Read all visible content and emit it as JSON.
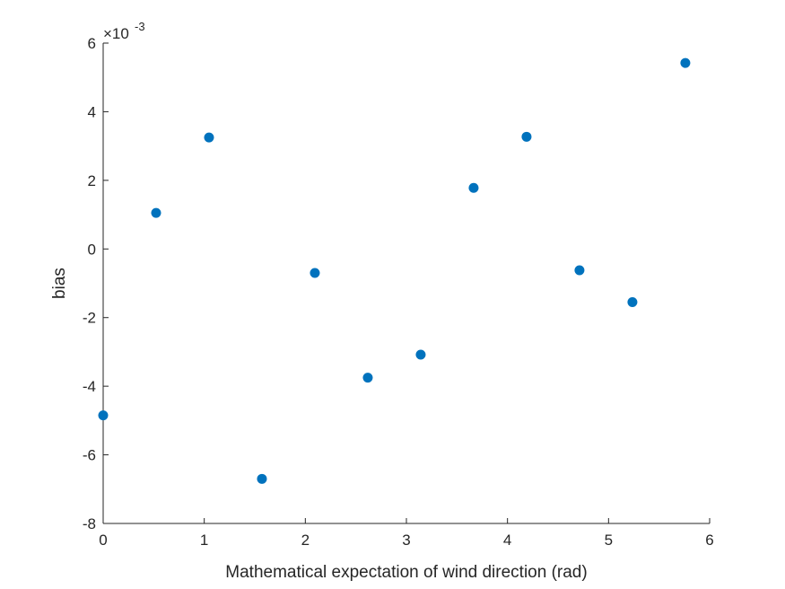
{
  "chart_data": {
    "type": "scatter",
    "title": "",
    "xlabel": "Mathematical expectation of wind direction (rad)",
    "ylabel": "bias",
    "y_exponent": {
      "base": "×10",
      "power": "-3"
    },
    "xlim": [
      0,
      6
    ],
    "ylim": [
      -8,
      6
    ],
    "xticks": [
      0,
      1,
      2,
      3,
      4,
      5,
      6
    ],
    "yticks": [
      -8,
      -6,
      -4,
      -2,
      0,
      2,
      4,
      6
    ],
    "xtick_labels": [
      "0",
      "1",
      "2",
      "3",
      "4",
      "5",
      "6"
    ],
    "ytick_labels": [
      "-8",
      "-6",
      "-4",
      "-2",
      "0",
      "2",
      "4",
      "6"
    ],
    "grid": false,
    "marker_color": "#0072BD",
    "series": [
      {
        "x": [
          0,
          0.5236,
          1.0472,
          1.5708,
          2.0944,
          2.618,
          3.1416,
          3.6652,
          4.1888,
          4.7124,
          5.236,
          5.7596
        ],
        "y": [
          -4.85,
          1.05,
          3.25,
          -6.7,
          -0.7,
          -3.75,
          -3.08,
          1.78,
          3.27,
          -0.62,
          -1.55,
          5.42
        ]
      }
    ]
  }
}
